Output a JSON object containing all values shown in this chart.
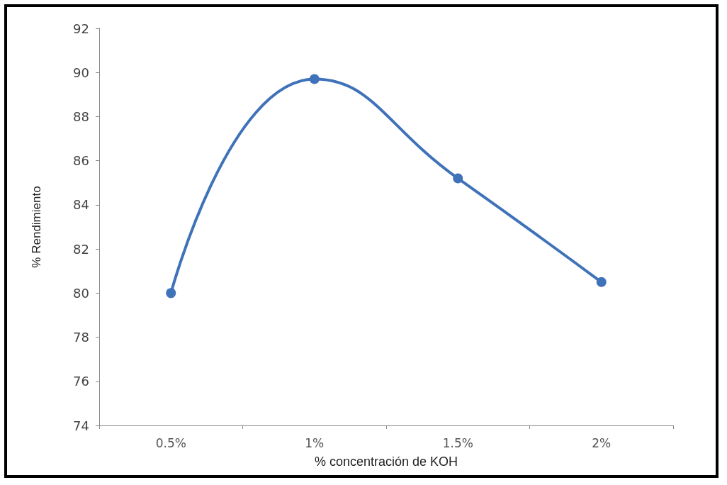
{
  "chart_data": {
    "type": "line",
    "xlabel": "% concentración de KOH",
    "ylabel": "% Rendimiento",
    "categories": [
      "0.5%",
      "1%",
      "1.5%",
      "2%"
    ],
    "series": [
      {
        "color": "#3f72b9",
        "values": [
          80.0,
          89.7,
          85.2,
          80.5
        ]
      }
    ],
    "ylim": [
      74,
      92
    ],
    "yticks": [
      74,
      76,
      78,
      80,
      82,
      84,
      86,
      88,
      90,
      92
    ],
    "grid": false,
    "marker": "circle",
    "line_style": "solid"
  }
}
